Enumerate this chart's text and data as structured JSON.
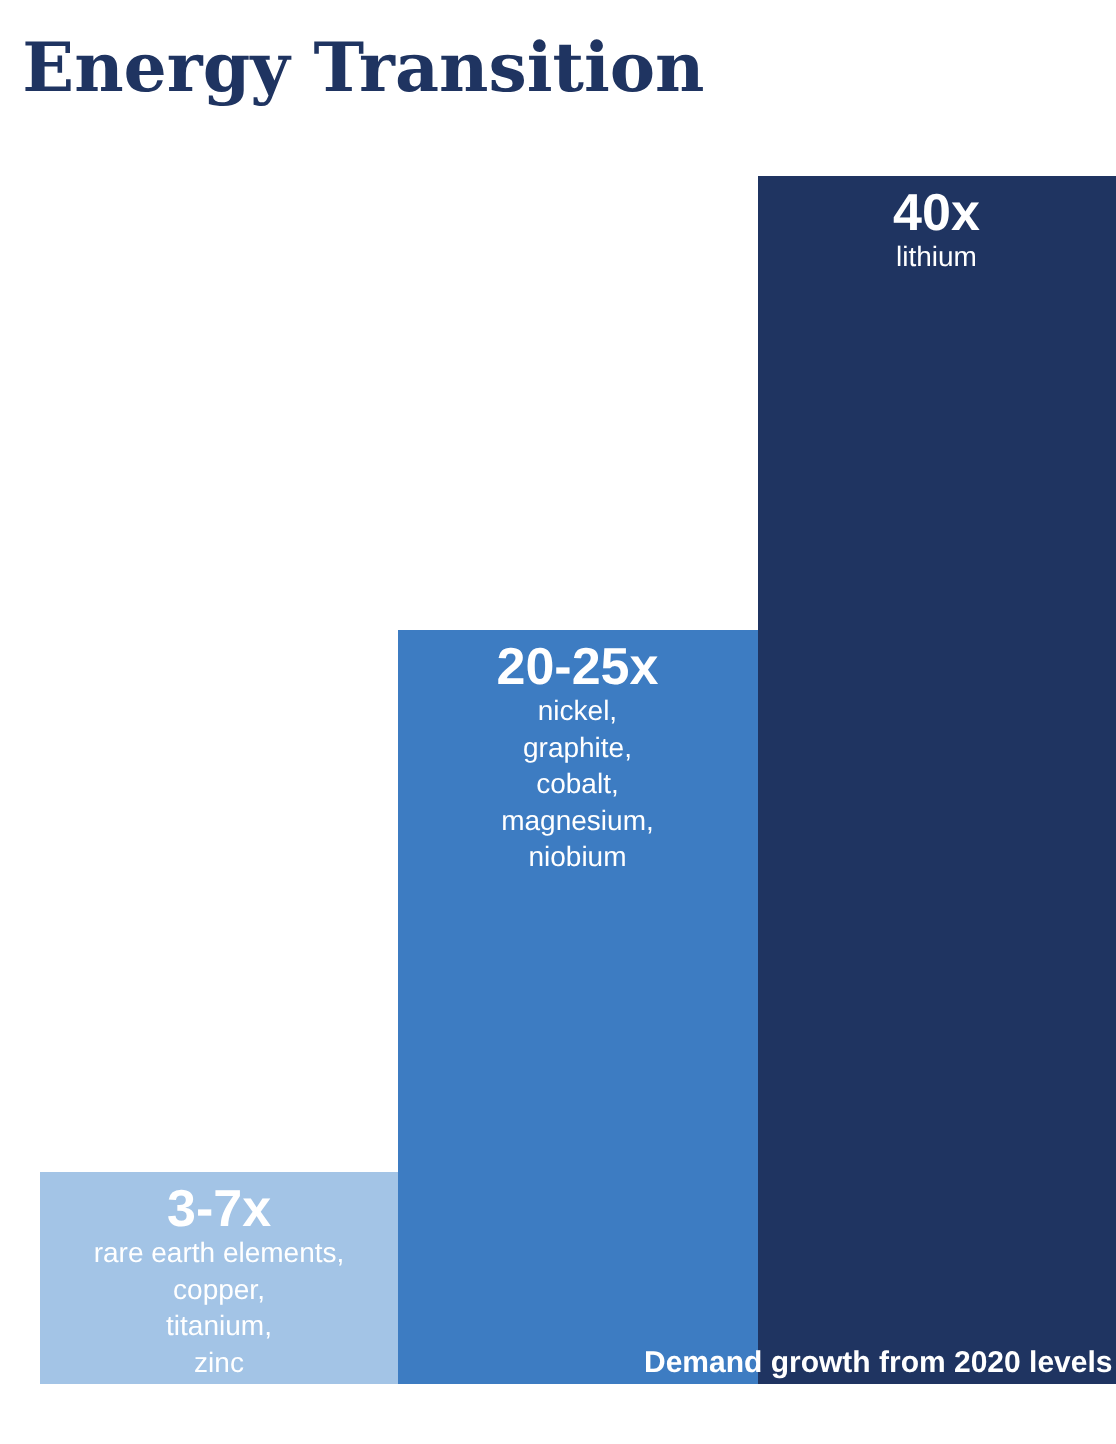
{
  "chart_data": {
    "type": "bar",
    "title": "Energy Transition",
    "categories": [
      "rare earth elements, copper, titanium, zinc",
      "nickel, graphite, cobalt, magnesium, niobium",
      "lithium"
    ],
    "values": [
      7,
      25,
      40
    ],
    "value_labels": [
      "3-7x",
      "20-25x",
      "40x"
    ],
    "colors": [
      "#a3c4e6",
      "#3d7cc2",
      "#1f3461"
    ],
    "grid": false,
    "legend": false,
    "annotations": [
      "Demand growth from 2020 levels"
    ]
  }
}
